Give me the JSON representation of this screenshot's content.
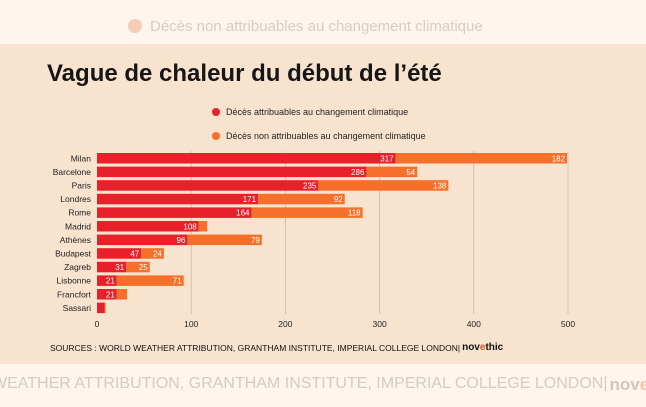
{
  "background_legend": {
    "label": "Décès non attribuables au changement climatique",
    "color": "#f8cdb5"
  },
  "title": "Vague de chaleur du début de l’été",
  "legend": [
    {
      "label": "Décès attribuables au changement climatique",
      "color": "#e8202a"
    },
    {
      "label": "Décès non attribuables au changement climatique",
      "color": "#f7702b"
    }
  ],
  "sources": "SOURCES : WORLD WEATHER ATTRIBUTION, GRANTHAM INSTITUTE, IMPERIAL COLLEGE LONDON|",
  "logo": {
    "part1": "nov",
    "part2": "e",
    "part3": "thic"
  },
  "background_footer": "WEATHER ATTRIBUTION, GRANTHAM INSTITUTE, IMPERIAL COLLEGE LONDON|",
  "chart_data": {
    "type": "bar",
    "orientation": "horizontal",
    "stacked": true,
    "categories": [
      "Milan",
      "Barcelone",
      "Paris",
      "Londres",
      "Rome",
      "Madrid",
      "Athènes",
      "Budapest",
      "Zagreb",
      "Lisbonne",
      "Francfort",
      "Sassari"
    ],
    "series": [
      {
        "name": "Décès attribuables au changement climatique",
        "color": "#e8202a",
        "values": [
          317,
          286,
          235,
          171,
          164,
          108,
          96,
          47,
          31,
          21,
          21,
          8
        ],
        "labels": [
          "317",
          "286",
          "235",
          "171",
          "164",
          "108",
          "96",
          "47",
          "31",
          "21",
          "21",
          ""
        ]
      },
      {
        "name": "Décès non attribuables au changement climatique",
        "color": "#f7702b",
        "values": [
          182,
          54,
          138,
          92,
          118,
          9,
          79,
          24,
          25,
          71,
          11,
          1
        ],
        "labels": [
          "182",
          "54",
          "138",
          "92",
          "118",
          "",
          "79",
          "24",
          "25",
          "71",
          "",
          ""
        ]
      }
    ],
    "xlim": [
      0,
      500
    ],
    "xticks": [
      0,
      100,
      200,
      300,
      400,
      500
    ],
    "grid": true
  }
}
